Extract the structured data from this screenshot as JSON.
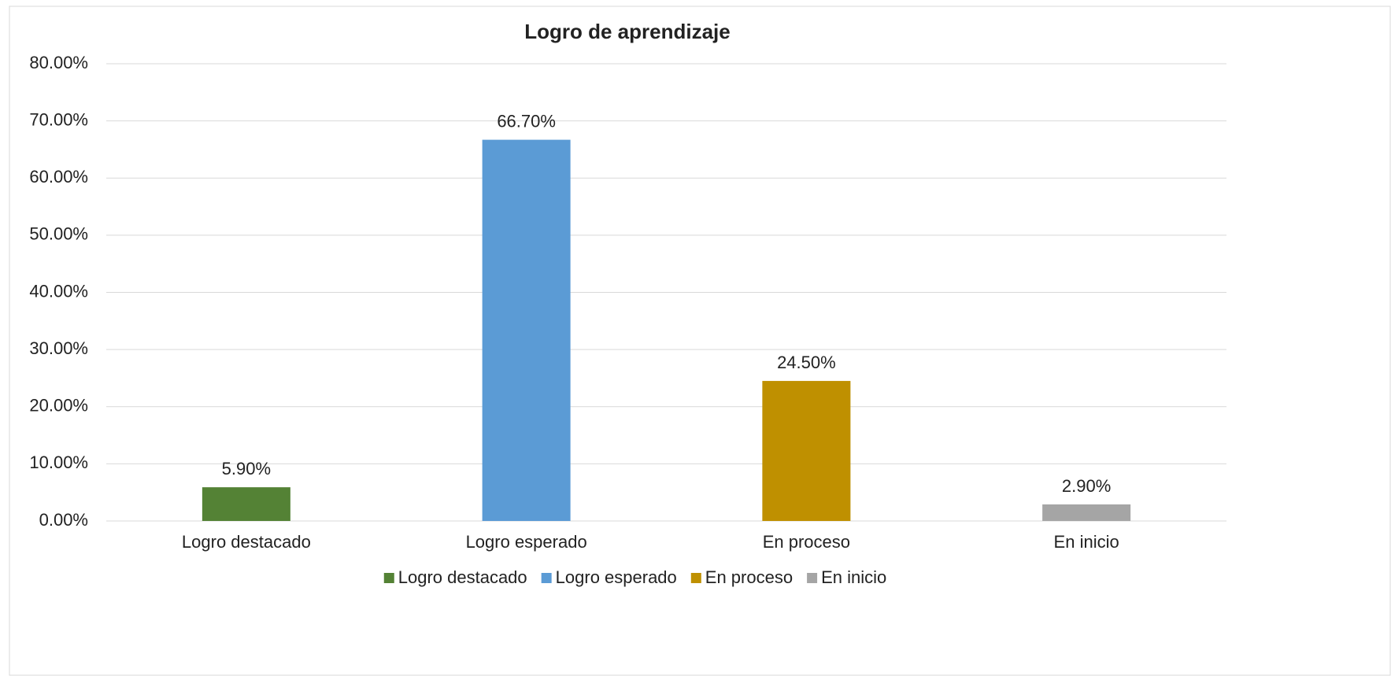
{
  "chart_data": {
    "type": "bar",
    "title": "Logro de aprendizaje",
    "categories": [
      "Logro destacado",
      "Logro esperado",
      "En proceso",
      "En inicio"
    ],
    "values": [
      5.9,
      66.7,
      24.5,
      2.9
    ],
    "value_labels": [
      "5.90%",
      "66.70%",
      "24.50%",
      "2.90%"
    ],
    "colors": [
      "#548235",
      "#5b9bd5",
      "#bf9000",
      "#a5a5a5"
    ],
    "ylim": [
      0,
      80
    ],
    "yticks": [
      {
        "value": 0,
        "label": "0.00%"
      },
      {
        "value": 10,
        "label": "10.00%"
      },
      {
        "value": 20,
        "label": "20.00%"
      },
      {
        "value": 30,
        "label": "30.00%"
      },
      {
        "value": 40,
        "label": "40.00%"
      },
      {
        "value": 50,
        "label": "50.00%"
      },
      {
        "value": 60,
        "label": "60.00%"
      },
      {
        "value": 70,
        "label": "70.00%"
      },
      {
        "value": 80,
        "label": "80.00%"
      }
    ],
    "grid": true,
    "legend": "bottom"
  }
}
